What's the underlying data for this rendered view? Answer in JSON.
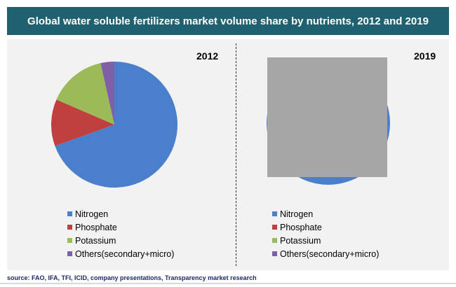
{
  "title": "Global water soluble fertilizers market volume share by nutrients, 2012 and 2019",
  "source": "source: FAO, IFA, TFI, ICID, company presentations, Transparency market research",
  "colors": {
    "header_bg": "#1f6170",
    "panel_bg": "#f2f2f2",
    "nitrogen": "#4a7fcb",
    "phosphate": "#c0403f",
    "potassium": "#9bbb59",
    "others": "#7f5fa7",
    "occluder": "#a6a6a6"
  },
  "chart_data": [
    {
      "type": "pie",
      "title": "2012",
      "categories": [
        "Nitrogen",
        "Phosphate",
        "Potassium",
        "Others(secondary+micro)"
      ],
      "values": [
        69.5,
        12.0,
        15.0,
        3.5
      ],
      "legend": "bottom"
    },
    {
      "type": "pie",
      "title": "2019",
      "categories": [
        "Nitrogen",
        "Phosphate",
        "Potassium",
        "Others(secondary+micro)"
      ],
      "values": [
        null,
        null,
        null,
        null
      ],
      "note_visible_slice": "Nitrogen",
      "legend": "bottom"
    }
  ]
}
